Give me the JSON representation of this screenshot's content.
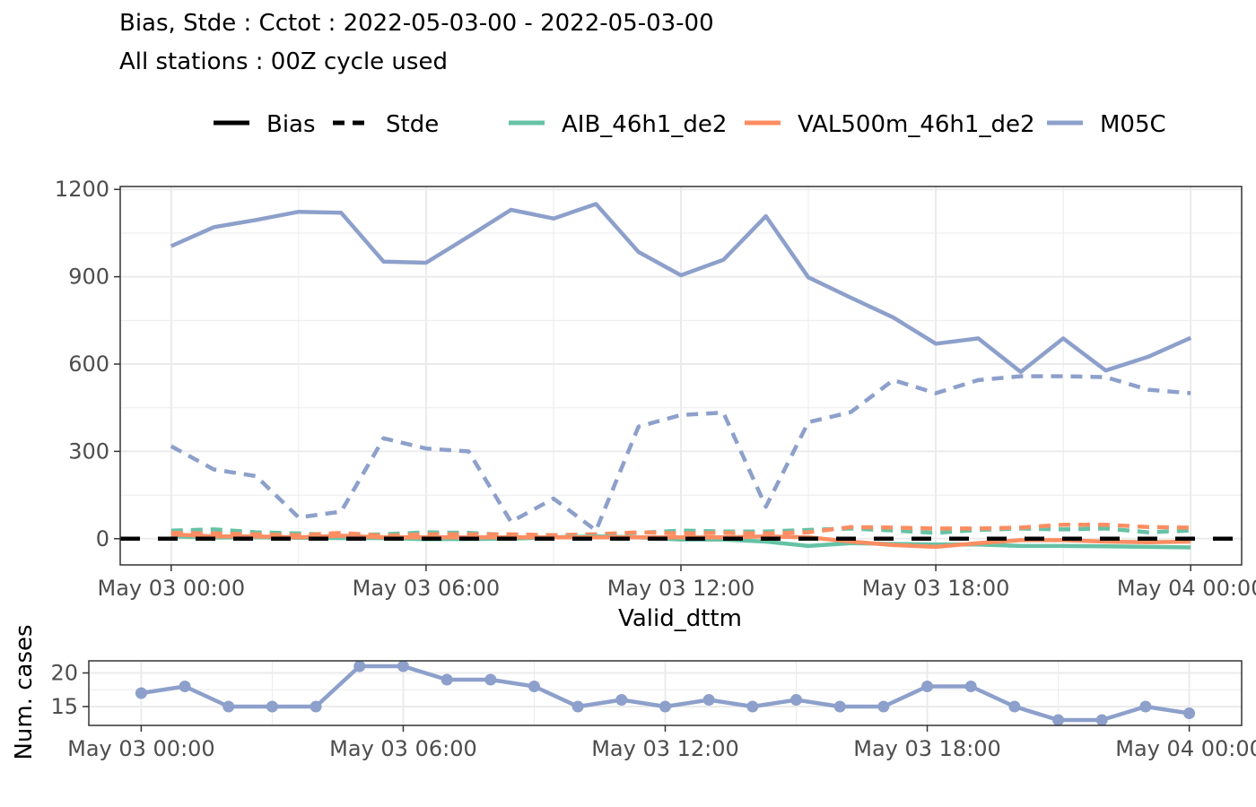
{
  "title": "Bias, Stde : Cctot : 2022-05-03-00 - 2022-05-03-00",
  "subtitle": "All stations : 00Z cycle used",
  "colors": {
    "AIB_46h1_de2": "#66c2a5",
    "VAL500m_46h1_de2": "#fc8d62",
    "M05C": "#8da0cb",
    "zero_line": "#000000",
    "grid": "#ebebeb",
    "frame": "#333333"
  },
  "legend": {
    "linetype_items": [
      {
        "label": "Bias",
        "style": "solid"
      },
      {
        "label": "Stde",
        "style": "dashed"
      }
    ],
    "model_items": [
      {
        "label": "AIB_46h1_de2",
        "color_key": "AIB_46h1_de2"
      },
      {
        "label": "VAL500m_46h1_de2",
        "color_key": "VAL500m_46h1_de2"
      },
      {
        "label": "M05C",
        "color_key": "M05C"
      }
    ],
    "placement": "top"
  },
  "chart_data": [
    {
      "type": "line",
      "xlabel": "Valid_dttm",
      "ylabel": "",
      "x": [
        0,
        1,
        2,
        3,
        4,
        5,
        6,
        7,
        8,
        9,
        10,
        11,
        12,
        13,
        14,
        15,
        16,
        17,
        18,
        19,
        20,
        21,
        22,
        23,
        24
      ],
      "x_unit": "hours since May 03 00:00",
      "x_ticks": [
        0,
        6,
        12,
        18,
        24
      ],
      "x_tick_labels": [
        "May 03 00:00",
        "May 03 06:00",
        "May 03 12:00",
        "May 03 18:00",
        "May 04 00:00"
      ],
      "xlim": [
        -1.2,
        25.2
      ],
      "ylim": [
        -90,
        1210
      ],
      "y_ticks": [
        0,
        300,
        600,
        900,
        1200
      ],
      "y_tick_labels": [
        "0",
        "300",
        "600",
        "900",
        "1200"
      ],
      "grid": true,
      "reference_line": {
        "y": 0,
        "style": "dashed"
      },
      "series": [
        {
          "name": "M05C",
          "stat": "Bias",
          "color_key": "M05C",
          "values": [
            1005,
            1070,
            1095,
            1123,
            1120,
            952,
            948,
            1038,
            1130,
            1100,
            1150,
            985,
            905,
            958,
            1108,
            898,
            828,
            760,
            670,
            688,
            573,
            688,
            578,
            625,
            690
          ]
        },
        {
          "name": "M05C",
          "stat": "Stde",
          "color_key": "M05C",
          "values": [
            318,
            238,
            215,
            73,
            93,
            345,
            310,
            300,
            58,
            138,
            28,
            385,
            425,
            433,
            110,
            400,
            435,
            545,
            500,
            545,
            558,
            558,
            555,
            512,
            500
          ]
        },
        {
          "name": "AIB_46h1_de2",
          "stat": "Bias",
          "color_key": "AIB_46h1_de2",
          "values": [
            8,
            4,
            5,
            3,
            2,
            2,
            -2,
            -1,
            0,
            5,
            8,
            5,
            -3,
            -3,
            -10,
            -25,
            -15,
            -18,
            -20,
            -20,
            -25,
            -25,
            -26,
            -28,
            -30
          ]
        },
        {
          "name": "AIB_46h1_de2",
          "stat": "Stde",
          "color_key": "AIB_46h1_de2",
          "values": [
            28,
            32,
            22,
            18,
            12,
            15,
            22,
            20,
            12,
            12,
            15,
            20,
            28,
            25,
            25,
            30,
            35,
            28,
            20,
            30,
            35,
            32,
            35,
            22,
            28
          ]
        },
        {
          "name": "VAL500m_46h1_de2",
          "stat": "Bias",
          "color_key": "VAL500m_46h1_de2",
          "values": [
            15,
            8,
            8,
            5,
            10,
            5,
            5,
            5,
            5,
            5,
            5,
            5,
            5,
            5,
            8,
            5,
            -10,
            -22,
            -28,
            -15,
            -5,
            -5,
            -10,
            -12,
            -10
          ]
        },
        {
          "name": "VAL500m_46h1_de2",
          "stat": "Stde",
          "color_key": "VAL500m_46h1_de2",
          "values": [
            20,
            18,
            15,
            12,
            20,
            10,
            15,
            15,
            15,
            12,
            15,
            22,
            18,
            20,
            18,
            22,
            40,
            38,
            35,
            35,
            38,
            48,
            48,
            40,
            38
          ]
        }
      ]
    },
    {
      "type": "line",
      "xlabel": "",
      "ylabel": "Num. cases",
      "x": [
        0,
        1,
        2,
        3,
        4,
        5,
        6,
        7,
        8,
        9,
        10,
        11,
        12,
        13,
        14,
        15,
        16,
        17,
        18,
        19,
        20,
        21,
        22,
        23,
        24
      ],
      "x_unit": "hours since May 03 00:00",
      "x_ticks": [
        0,
        6,
        12,
        18,
        24
      ],
      "x_tick_labels": [
        "May 03 00:00",
        "May 03 06:00",
        "May 03 12:00",
        "May 03 18:00",
        "May 04 00:00"
      ],
      "xlim": [
        -1.2,
        25.2
      ],
      "ylim": [
        12.2,
        21.8
      ],
      "y_ticks": [
        15,
        20
      ],
      "y_tick_labels": [
        "15",
        "20"
      ],
      "grid": true,
      "series": [
        {
          "name": "M05C",
          "color_key": "M05C",
          "values": [
            17,
            18,
            15,
            15,
            15,
            21,
            21,
            19,
            19,
            18,
            15,
            16,
            15,
            16,
            15,
            16,
            15,
            15,
            18,
            18,
            15,
            13,
            13,
            15,
            14
          ]
        }
      ]
    }
  ]
}
